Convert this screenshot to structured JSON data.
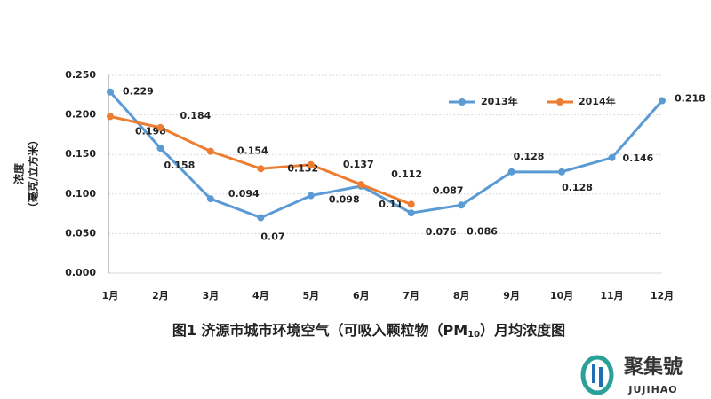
{
  "chart_data": {
    "type": "line",
    "title": {
      "main": "图1 济源市城市环境空气（可吸入颗粒物（PM",
      "subscript": "10",
      "end": "）月均浓度图"
    },
    "y_label": [
      "浓度",
      "（毫克/立方米）"
    ],
    "categories": [
      "1月",
      "2月",
      "3月",
      "4月",
      "5月",
      "6月",
      "7月",
      "8月",
      "9月",
      "10月",
      "11月",
      "12月"
    ],
    "series": [
      {
        "name": "2013年",
        "color": "#5b9bd5",
        "values": [
          0.229,
          0.158,
          0.094,
          0.07,
          0.098,
          0.11,
          0.076,
          0.086,
          0.128,
          0.128,
          0.146,
          0.218
        ]
      },
      {
        "name": "2014年",
        "color": "#ed7d31",
        "values": [
          0.198,
          0.184,
          0.154,
          0.132,
          0.137,
          0.112,
          0.087,
          null,
          null,
          null,
          null,
          null
        ]
      }
    ],
    "ylim": [
      0,
      0.25
    ],
    "yticks": [
      {
        "value": 0,
        "label": "0.000"
      },
      {
        "value": 0.05,
        "label": "0.050"
      },
      {
        "value": 0.1,
        "label": "0.100"
      },
      {
        "value": 0.15,
        "label": "0.150"
      },
      {
        "value": 0.2,
        "label": "0.200"
      },
      {
        "value": 0.25,
        "label": "0.250"
      }
    ],
    "grid": true,
    "legend": "top-right"
  },
  "logo": {
    "text": "聚集號",
    "subtext": "JUJIHAO"
  }
}
